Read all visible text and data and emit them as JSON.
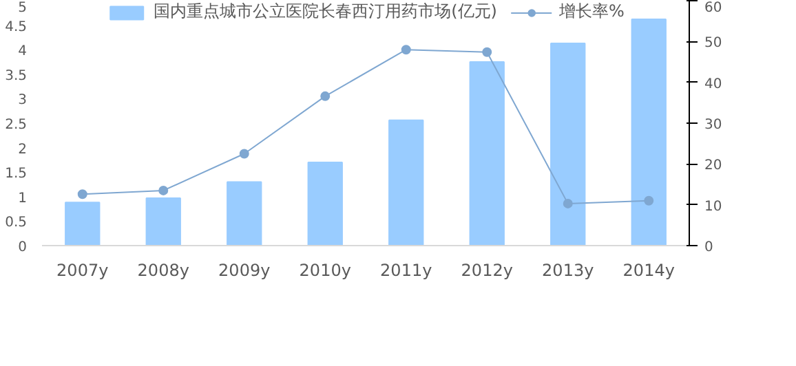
{
  "chart_data": {
    "type": "bar",
    "categories": [
      "2007y",
      "2008y",
      "2009y",
      "2010y",
      "2011y",
      "2012y",
      "2013y",
      "2014y"
    ],
    "series": [
      {
        "name": "国内重点城市公立医院长春西汀用药市场(亿元)",
        "color": "#99ccff",
        "values": [
          0.88,
          0.97,
          1.3,
          1.7,
          2.56,
          3.75,
          4.13,
          4.62
        ]
      },
      {
        "name": "增长率%",
        "type": "line",
        "axis": "y2",
        "color": "#7fa7d1",
        "values": [
          12.6,
          13.5,
          22.5,
          36.6,
          48,
          47.4,
          10.3,
          11
        ]
      }
    ],
    "ylim": [
      0,
      5
    ],
    "yticks": [
      0,
      0.5,
      1,
      1.5,
      2,
      2.5,
      3,
      3.5,
      4,
      4.5,
      5
    ],
    "y2lim": [
      0,
      60
    ],
    "y2ticks": [
      0,
      10,
      20,
      30,
      40,
      50,
      60
    ],
    "grid": false,
    "legend": "top",
    "marker": "circle"
  }
}
